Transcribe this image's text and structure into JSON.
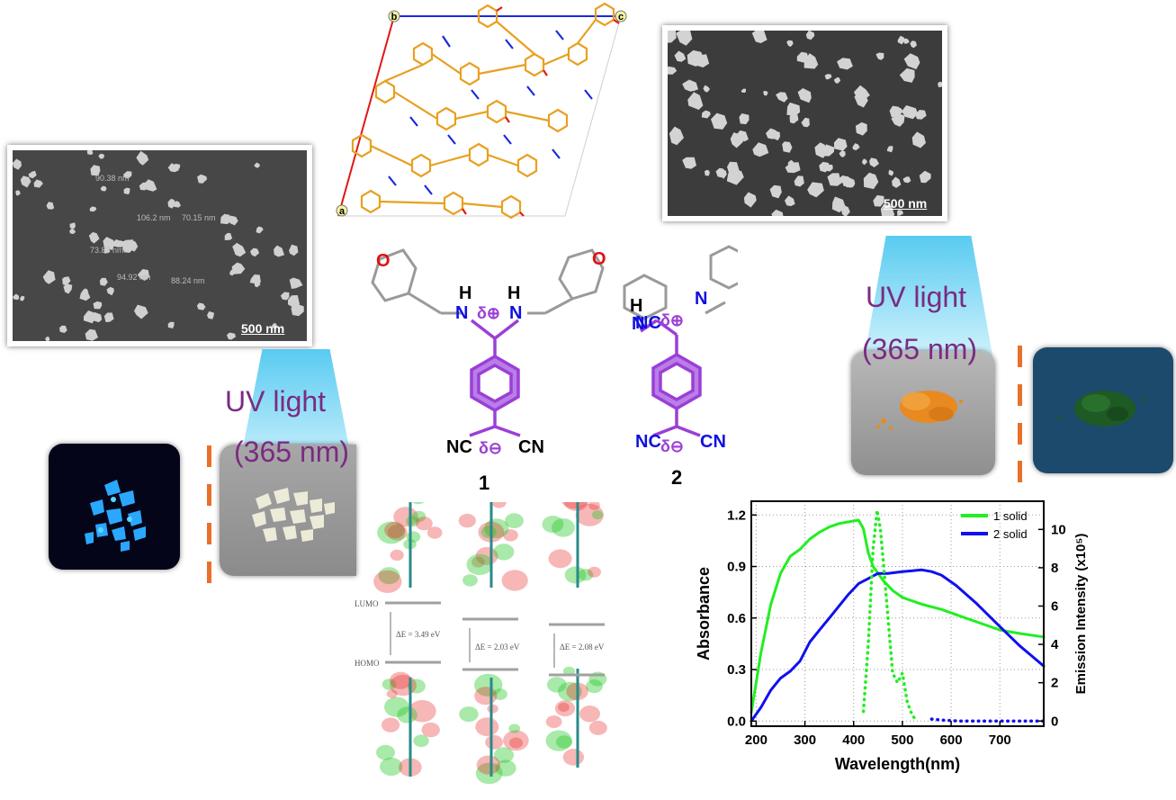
{
  "sem_scale_left": "500 nm",
  "sem_scale_right": "500 nm",
  "sem_measurements": [
    "90.38 nm",
    "106.2 nm",
    "70.15 nm",
    "73.83 nm",
    "94.92 nm",
    "88.24 nm"
  ],
  "crystal_axes": {
    "a": "a",
    "b": "b",
    "c": "c"
  },
  "uv_label_left": {
    "line1": "UV light",
    "line2": "(365 nm)"
  },
  "uv_label_right": {
    "line1": "UV light",
    "line2": "(365 nm)"
  },
  "compound1_label": "1",
  "compound2_label": "2",
  "orbital_labels": {
    "lumo": "LUMO",
    "homo": "HOMO",
    "gap1": "ΔE = 3.49 eV",
    "gap2": "ΔE = 2.03 eV",
    "gap3": "ΔE = 2.08 eV"
  },
  "chem_text": {
    "H": "H",
    "NC": "NC",
    "CN": "CN",
    "N": "N",
    "O": "O",
    "dplus": "δ⊕",
    "dminus": "δ⊖"
  },
  "colors": {
    "structure": "#9b3fd6",
    "nitrogen": "#1010e0",
    "oxygen": "#e01010",
    "gray_ring": "#9a9a9a",
    "uv_purple": "#7a2b82",
    "dash": "#e8702a",
    "series1": "#22ee22",
    "series2": "#1010ee"
  },
  "chart_data": {
    "type": "line",
    "xlabel": "Wavelength(nm)",
    "ylabel": "Absorbance",
    "y2label": "Emission Intensity (x10⁵)",
    "xlim": [
      190,
      790
    ],
    "ylim": [
      -0.03,
      1.28
    ],
    "y2lim": [
      -0.27,
      11.47
    ],
    "xticks": [
      200,
      300,
      400,
      500,
      600,
      700
    ],
    "yticks": [
      0.0,
      0.3,
      0.6,
      0.9,
      1.2
    ],
    "yticklabels": [
      "0.0",
      "0.3",
      "0.6",
      "0.9",
      "1.2"
    ],
    "y2ticks": [
      0,
      2,
      4,
      6,
      8,
      10
    ],
    "grid": true,
    "legend_position": "top-right",
    "series": [
      {
        "name": "1 solid",
        "kind": "absorbance",
        "style": "solid",
        "x": [
          190,
          210,
          230,
          250,
          270,
          290,
          310,
          330,
          350,
          370,
          390,
          410,
          420,
          430,
          440,
          460,
          480,
          500,
          540,
          580,
          620,
          660,
          700,
          740,
          790
        ],
        "y": [
          0.05,
          0.4,
          0.68,
          0.86,
          0.96,
          1.0,
          1.06,
          1.1,
          1.13,
          1.15,
          1.16,
          1.17,
          1.12,
          0.98,
          0.9,
          0.82,
          0.76,
          0.72,
          0.68,
          0.65,
          0.61,
          0.57,
          0.53,
          0.51,
          0.49
        ]
      },
      {
        "name": "2 solid",
        "kind": "absorbance",
        "style": "solid",
        "x": [
          190,
          210,
          230,
          250,
          270,
          290,
          310,
          330,
          350,
          370,
          390,
          410,
          430,
          450,
          470,
          500,
          540,
          560,
          580,
          610,
          650,
          700,
          740,
          790
        ],
        "y": [
          0.0,
          0.08,
          0.18,
          0.25,
          0.29,
          0.35,
          0.46,
          0.53,
          0.6,
          0.67,
          0.74,
          0.8,
          0.83,
          0.86,
          0.86,
          0.87,
          0.88,
          0.87,
          0.85,
          0.79,
          0.69,
          0.55,
          0.44,
          0.32
        ]
      },
      {
        "name": "1 solid",
        "kind": "emission",
        "style": "dotted",
        "x": [
          420,
          430,
          440,
          448,
          455,
          462,
          470,
          480,
          490,
          500,
          510,
          520,
          530
        ],
        "y": [
          0.5,
          4.0,
          9.0,
          11.0,
          10.0,
          8.0,
          5.5,
          2.5,
          2.0,
          2.5,
          1.0,
          0.3,
          0.0
        ]
      },
      {
        "name": "2 solid",
        "kind": "emission",
        "style": "dotted",
        "x": [
          560,
          580,
          620,
          660,
          700,
          740,
          790
        ],
        "y": [
          0.1,
          0.05,
          0.0,
          0.0,
          0.0,
          0.0,
          0.0
        ]
      }
    ]
  }
}
